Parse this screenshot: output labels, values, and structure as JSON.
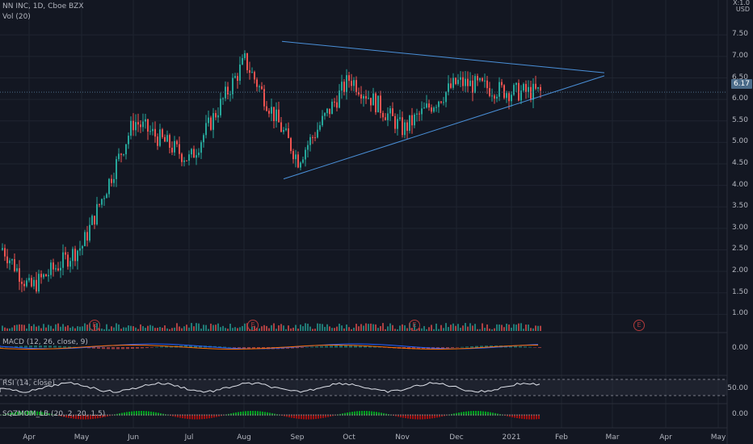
{
  "header": {
    "symbol": "NN INC, 1D, Cboe BZX",
    "volume_label": "Vol (20)",
    "currency_top": "X:1.0",
    "currency": "USD"
  },
  "last_price": "6.17",
  "earnings_marker": "E",
  "panes": {
    "macd_label": "MACD (12, 26, close, 9)",
    "macd_value": "0.00",
    "rsi_label": "RSI (14, close)",
    "rsi_value": "50.00",
    "sqz_label": "SQZMOM_LB (20, 2, 20, 1.5)",
    "sqz_value": "0.00"
  },
  "colors": {
    "background": "#131722",
    "up": "#26a69a",
    "down": "#ef5350",
    "trendline": "#4a90d9",
    "grid": "#1f2430"
  },
  "chart_data": {
    "type": "candlestick",
    "title": "NN INC, 1D, Cboe BZX",
    "y_axis_labels": [
      "7.50",
      "7.00",
      "6.50",
      "6.00",
      "5.50",
      "5.00",
      "4.50",
      "4.00",
      "3.50",
      "3.00",
      "2.50",
      "2.00",
      "1.50",
      "1.00"
    ],
    "x_axis_labels": [
      "Apr",
      "May",
      "Jun",
      "Jul",
      "Aug",
      "Sep",
      "Oct",
      "Nov",
      "Dec",
      "2021",
      "Feb",
      "Mar",
      "Apr",
      "May"
    ],
    "ylim": [
      0.8,
      7.75
    ],
    "last_close": 6.17,
    "monthly_closes": [
      {
        "month": "Apr",
        "close": 1.6
      },
      {
        "month": "May",
        "close": 2.6
      },
      {
        "month": "Jun",
        "close": 5.5
      },
      {
        "month": "Jul",
        "close": 4.6
      },
      {
        "month": "Aug",
        "close": 6.9
      },
      {
        "month": "Sep",
        "close": 4.6
      },
      {
        "month": "Oct",
        "close": 6.5
      },
      {
        "month": "Nov",
        "close": 5.3
      },
      {
        "month": "Dec",
        "close": 6.4
      },
      {
        "month": "2021",
        "close": 6.17
      }
    ],
    "triangle": {
      "upper": [
        [
          7.35
        ],
        [
          6.62
        ]
      ],
      "lower": [
        [
          4.15
        ],
        [
          6.55
        ]
      ]
    }
  }
}
